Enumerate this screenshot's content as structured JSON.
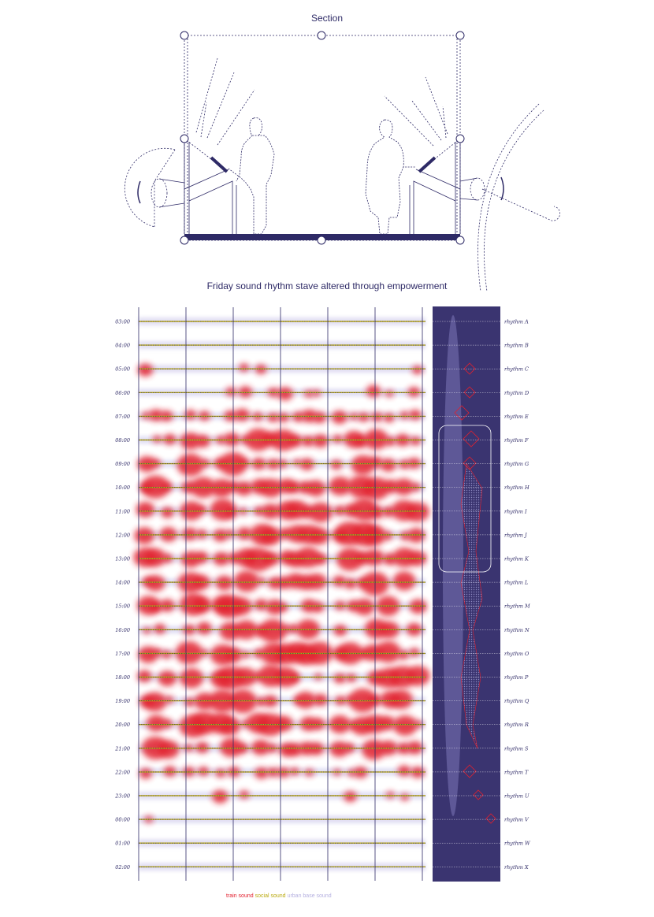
{
  "section_title": "Section",
  "stave_title": "Friday sound rhythm stave altered through empowerment",
  "colors": {
    "navy": "#2e2a66",
    "panel": "#3a3470",
    "train": "#e2202e",
    "social": "#b9a90e",
    "urban": "#c9c4ea"
  },
  "times": [
    "03:00",
    "04:00",
    "05:00",
    "06:00",
    "07:00",
    "08:00",
    "09:00",
    "10:00",
    "11:00",
    "12:00",
    "13:00",
    "14:00",
    "15:00",
    "16:00",
    "17:00",
    "18:00",
    "19:00",
    "20:00",
    "21:00",
    "22:00",
    "23:00",
    "00:00",
    "01:00",
    "02:00"
  ],
  "rhythms": [
    "rhythm A",
    "rhythm B",
    "rhythm C",
    "rhythm D",
    "rhythm E",
    "rhythm F",
    "rhythm G",
    "rhythm H",
    "rhythm I",
    "rhythm J",
    "rhythm K",
    "rhythm L",
    "rhythm M",
    "rhythm N",
    "rhythm O",
    "rhythm P",
    "rhythm Q",
    "rhythm R",
    "rhythm S",
    "rhythm T",
    "rhythm U",
    "rhythm V",
    "rhythm W",
    "rhythm X"
  ],
  "legend": {
    "train": "train sound",
    "social": "social sound",
    "urban": "urban base sound"
  }
}
